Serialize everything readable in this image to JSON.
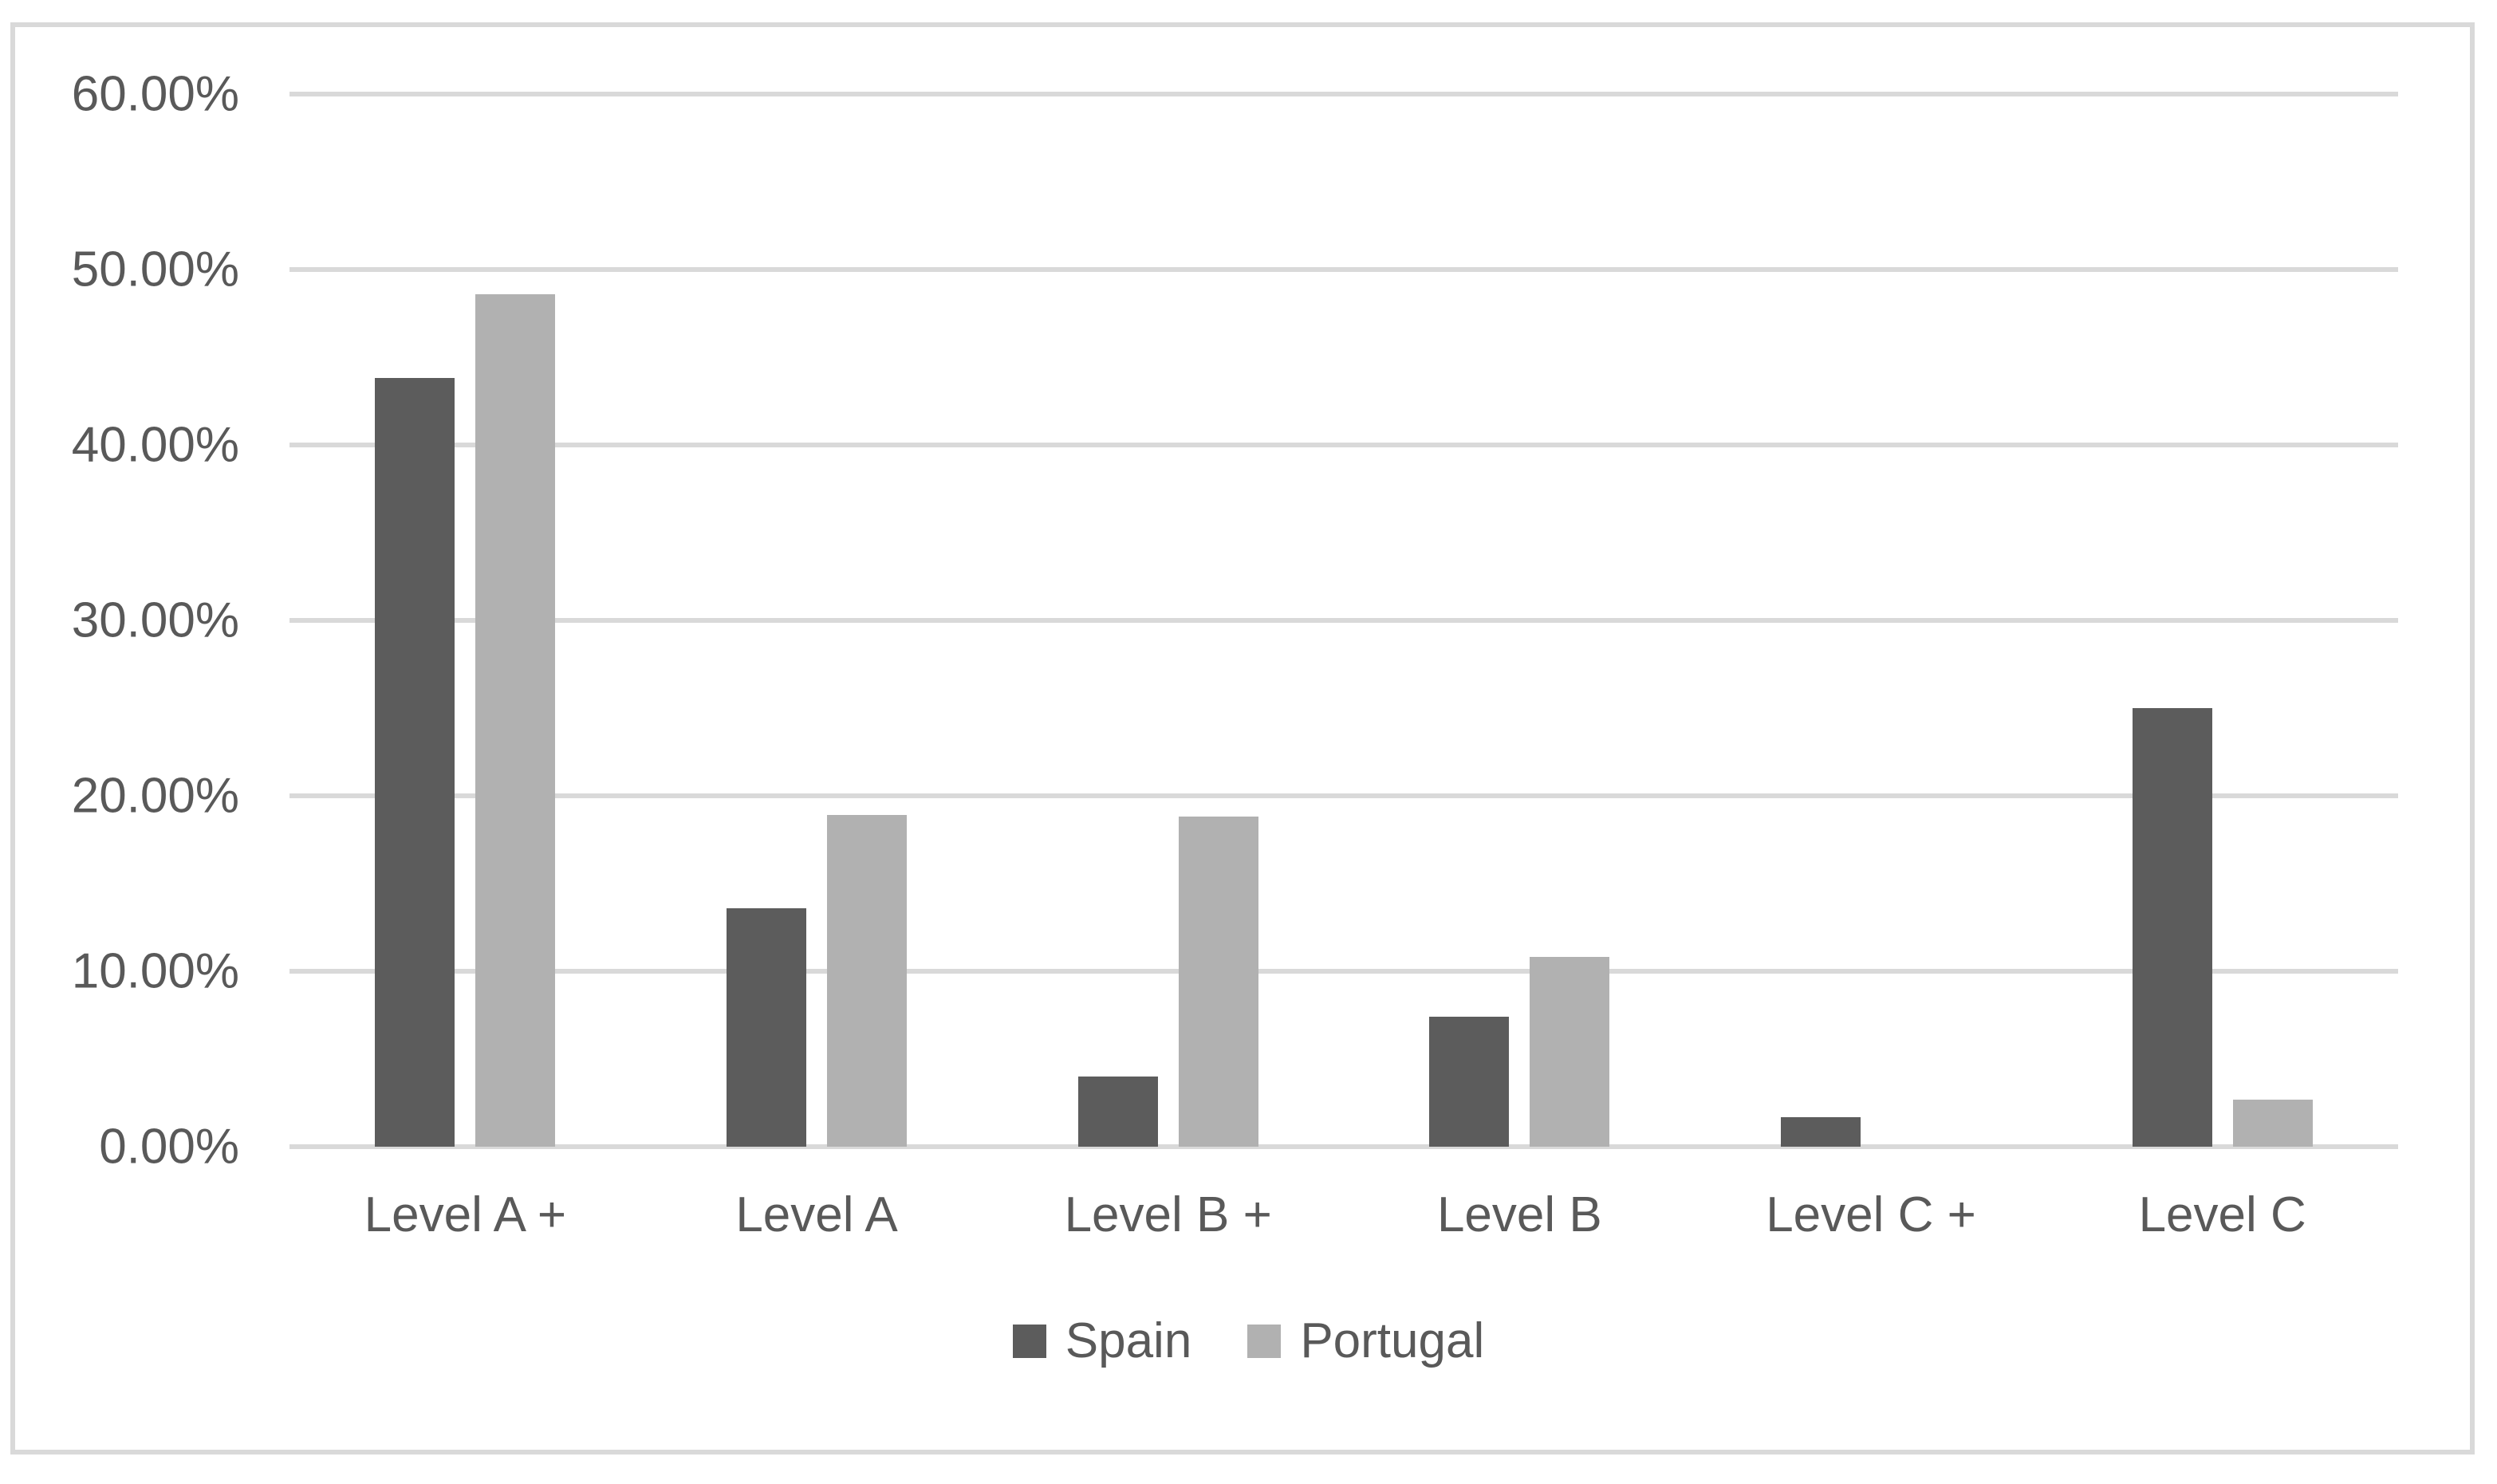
{
  "chart_data": {
    "type": "bar",
    "title": "",
    "categories": [
      "Level A +",
      "Level A",
      "Level B +",
      "Level B",
      "Level C +",
      "Level C"
    ],
    "series": [
      {
        "name": "Spain",
        "color": "#5C5C5C",
        "values": [
          43.8,
          13.6,
          4.0,
          7.4,
          1.7,
          25.0
        ]
      },
      {
        "name": "Portugal",
        "color": "#B1B1B1",
        "values": [
          48.6,
          18.9,
          18.8,
          10.8,
          0,
          2.7
        ]
      }
    ],
    "y_axis": {
      "min": 0,
      "max": 60,
      "tick_values": [
        60,
        50,
        40,
        30,
        20,
        10,
        0
      ],
      "tick_labels": [
        "60.00%",
        "50.00%",
        "40.00%",
        "30.00%",
        "20.00%",
        "10.00%",
        "0.00%"
      ]
    },
    "grid": true,
    "legend_position": "bottom",
    "colors": {
      "gridline": "#D9D9D9",
      "frame_border": "#D9D9D9",
      "text": "#595959",
      "background": "#FFFFFF"
    }
  }
}
